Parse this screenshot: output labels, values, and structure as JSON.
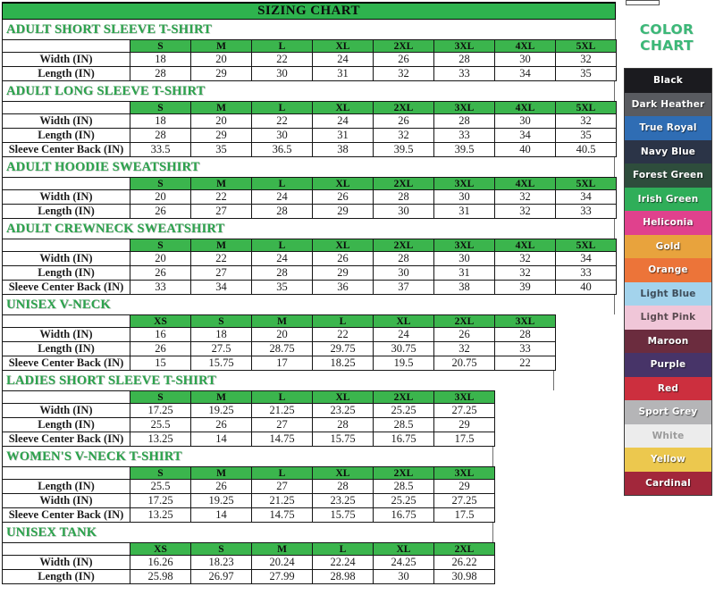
{
  "title": "SIZING CHART",
  "sections": [
    {
      "title": "ADULT SHORT SLEEVE T-SHIRT",
      "sizes": [
        "S",
        "M",
        "L",
        "XL",
        "2XL",
        "3XL",
        "4XL",
        "5XL"
      ],
      "rows": [
        {
          "label": "Width (IN)",
          "values": [
            "18",
            "20",
            "22",
            "24",
            "26",
            "28",
            "30",
            "32"
          ]
        },
        {
          "label": "Length (IN)",
          "values": [
            "28",
            "29",
            "30",
            "31",
            "32",
            "33",
            "34",
            "35"
          ]
        }
      ]
    },
    {
      "title": "ADULT LONG SLEEVE T-SHIRT",
      "sizes": [
        "S",
        "M",
        "L",
        "XL",
        "2XL",
        "3XL",
        "4XL",
        "5XL"
      ],
      "rows": [
        {
          "label": "Width (IN)",
          "values": [
            "18",
            "20",
            "22",
            "24",
            "26",
            "28",
            "30",
            "32"
          ]
        },
        {
          "label": "Length (IN)",
          "values": [
            "28",
            "29",
            "30",
            "31",
            "32",
            "33",
            "34",
            "35"
          ]
        },
        {
          "label": "Sleeve Center Back (IN)",
          "values": [
            "33.5",
            "35",
            "36.5",
            "38",
            "39.5",
            "39.5",
            "40",
            "40.5"
          ]
        }
      ]
    },
    {
      "title": "ADULT HOODIE SWEATSHIRT",
      "sizes": [
        "S",
        "M",
        "L",
        "XL",
        "2XL",
        "3XL",
        "4XL",
        "5XL"
      ],
      "rows": [
        {
          "label": "Width (IN)",
          "values": [
            "20",
            "22",
            "24",
            "26",
            "28",
            "30",
            "32",
            "34"
          ]
        },
        {
          "label": "Length (IN)",
          "values": [
            "26",
            "27",
            "28",
            "29",
            "30",
            "31",
            "32",
            "33"
          ]
        }
      ]
    },
    {
      "title": "ADULT CREWNECK SWEATSHIRT",
      "sizes": [
        "S",
        "M",
        "L",
        "XL",
        "2XL",
        "3XL",
        "4XL",
        "5XL"
      ],
      "rows": [
        {
          "label": "Width (IN)",
          "values": [
            "20",
            "22",
            "24",
            "26",
            "28",
            "30",
            "32",
            "34"
          ]
        },
        {
          "label": "Length (IN)",
          "values": [
            "26",
            "27",
            "28",
            "29",
            "30",
            "31",
            "32",
            "33"
          ]
        },
        {
          "label": "Sleeve Center Back (IN)",
          "values": [
            "33",
            "34",
            "35",
            "36",
            "37",
            "38",
            "39",
            "40"
          ]
        }
      ]
    },
    {
      "title": "UNISEX V-NECK",
      "sizes": [
        "XS",
        "S",
        "M",
        "L",
        "XL",
        "2XL",
        "3XL"
      ],
      "rows": [
        {
          "label": "Width (IN)",
          "values": [
            "16",
            "18",
            "20",
            "22",
            "24",
            "26",
            "28"
          ]
        },
        {
          "label": "Length (IN)",
          "values": [
            "26",
            "27.5",
            "28.75",
            "29.75",
            "30.75",
            "32",
            "33"
          ]
        },
        {
          "label": "Sleeve Center Back (IN)",
          "values": [
            "15",
            "15.75",
            "17",
            "18.25",
            "19.5",
            "20.75",
            "22"
          ]
        }
      ]
    },
    {
      "title": "LADIES SHORT SLEEVE T-SHIRT",
      "sizes": [
        "S",
        "M",
        "L",
        "XL",
        "2XL",
        "3XL"
      ],
      "rows": [
        {
          "label": "Width (IN)",
          "values": [
            "17.25",
            "19.25",
            "21.25",
            "23.25",
            "25.25",
            "27.25"
          ]
        },
        {
          "label": "Length (IN)",
          "values": [
            "25.5",
            "26",
            "27",
            "28",
            "28.5",
            "29"
          ]
        },
        {
          "label": "Sleeve Center Back (IN)",
          "values": [
            "13.25",
            "14",
            "14.75",
            "15.75",
            "16.75",
            "17.5"
          ]
        }
      ]
    },
    {
      "title": "WOMEN'S V-NECK T-SHIRT",
      "sizes": [
        "S",
        "M",
        "L",
        "XL",
        "2XL",
        "3XL"
      ],
      "rows": [
        {
          "label": "Length (IN)",
          "values": [
            "25.5",
            "26",
            "27",
            "28",
            "28.5",
            "29"
          ]
        },
        {
          "label": "Width (IN)",
          "values": [
            "17.25",
            "19.25",
            "21.25",
            "23.25",
            "25.25",
            "27.25"
          ]
        },
        {
          "label": "Sleeve Center Back (IN)",
          "values": [
            "13.25",
            "14",
            "14.75",
            "15.75",
            "16.75",
            "17.5"
          ]
        }
      ]
    },
    {
      "title": "UNISEX TANK",
      "sizes": [
        "XS",
        "S",
        "M",
        "L",
        "XL",
        "2XL"
      ],
      "rows": [
        {
          "label": "Width (IN)",
          "values": [
            "16.26",
            "18.23",
            "20.24",
            "22.24",
            "24.25",
            "26.22"
          ]
        },
        {
          "label": "Length (IN)",
          "values": [
            "25.98",
            "26.97",
            "27.99",
            "28.98",
            "30",
            "30.98"
          ]
        }
      ]
    }
  ],
  "color_chart": {
    "title": "COLOR CHART",
    "colors": [
      {
        "name": "Black",
        "hex": "#1b1b1f",
        "text": "#ffffff"
      },
      {
        "name": "Dark Heather",
        "hex": "#595b60",
        "text": "#ffffff"
      },
      {
        "name": "True Royal",
        "hex": "#2f6db4",
        "text": "#ffffff"
      },
      {
        "name": "Navy Blue",
        "hex": "#2b3447",
        "text": "#ffffff"
      },
      {
        "name": "Forest Green",
        "hex": "#2e4d3c",
        "text": "#ffffff"
      },
      {
        "name": "Irish Green",
        "hex": "#2fae59",
        "text": "#ffffff"
      },
      {
        "name": "Heliconia",
        "hex": "#e0418d",
        "text": "#ffffff"
      },
      {
        "name": "Gold",
        "hex": "#e8a33d",
        "text": "#ffffff"
      },
      {
        "name": "Orange",
        "hex": "#ec7439",
        "text": "#ffffff"
      },
      {
        "name": "Light Blue",
        "hex": "#a3d3ec",
        "text": "#3d4c59"
      },
      {
        "name": "Light Pink",
        "hex": "#f0c6d8",
        "text": "#5a4a50"
      },
      {
        "name": "Maroon",
        "hex": "#6b2c3e",
        "text": "#ffffff"
      },
      {
        "name": "Purple",
        "hex": "#473468",
        "text": "#ffffff"
      },
      {
        "name": "Red",
        "hex": "#cc2f3e",
        "text": "#ffffff"
      },
      {
        "name": "Sport Grey",
        "hex": "#b5b5b7",
        "text": "#ffffff"
      },
      {
        "name": "White",
        "hex": "#ececec",
        "text": "#9a9a9a"
      },
      {
        "name": "Yellow",
        "hex": "#ecc84e",
        "text": "#ffffff"
      },
      {
        "name": "Cardinal",
        "hex": "#a2273b",
        "text": "#ffffff"
      }
    ]
  }
}
